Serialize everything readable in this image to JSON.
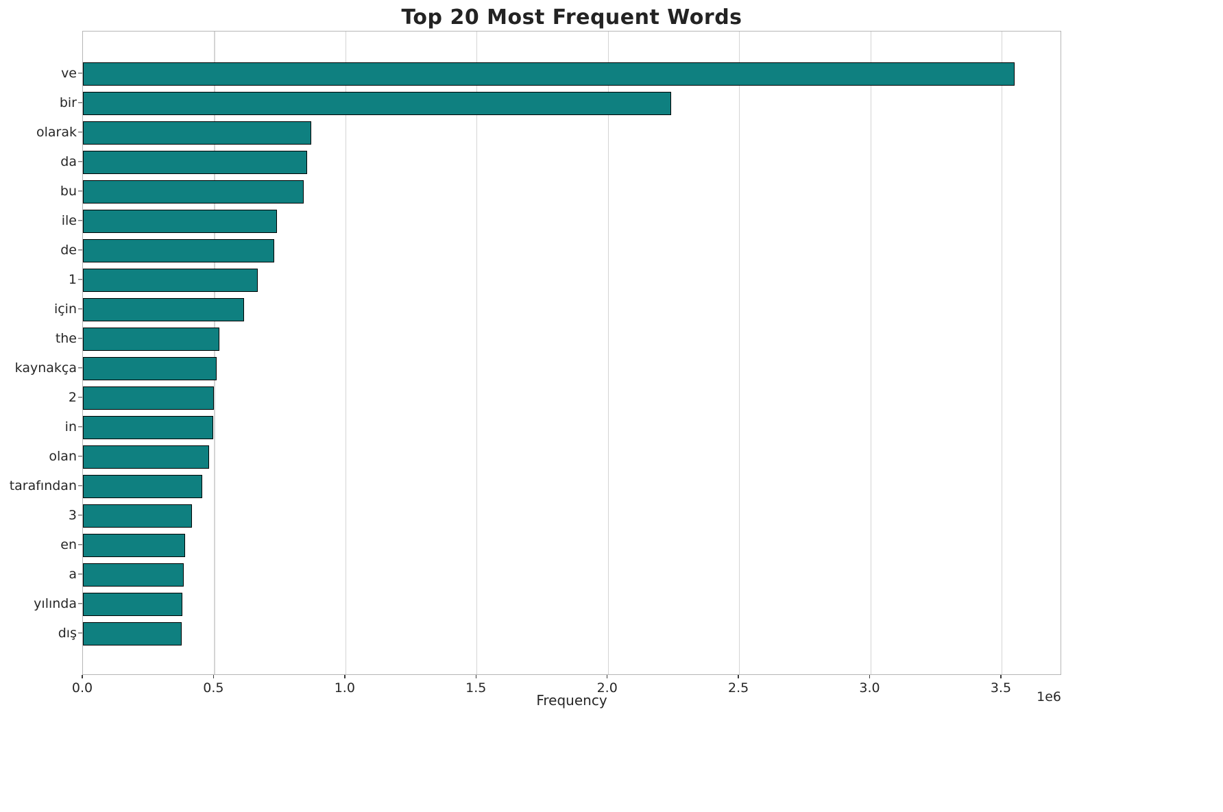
{
  "chart_data": {
    "type": "bar",
    "orientation": "horizontal",
    "title": "Top 20 Most Frequent Words",
    "xlabel": "Frequency",
    "ylabel": "",
    "offset_text": "1e6",
    "xlim": [
      0,
      3730000
    ],
    "grid": true,
    "legend": false,
    "colors": {
      "bar_fill": "#0f8080",
      "bar_edge": "#000000",
      "grid_line": "#d4d4d4",
      "frame": "#b5b5b5",
      "text": "#262626"
    },
    "categories": [
      "ve",
      "bir",
      "olarak",
      "da",
      "bu",
      "ile",
      "de",
      "1",
      "için",
      "the",
      "kaynakça",
      "2",
      "in",
      "olan",
      "tarafından",
      "3",
      "en",
      "a",
      "yılında",
      "dış"
    ],
    "values": [
      3550000,
      2240000,
      870000,
      855000,
      840000,
      740000,
      730000,
      665000,
      615000,
      520000,
      510000,
      500000,
      497000,
      480000,
      455000,
      415000,
      390000,
      385000,
      380000,
      375000
    ],
    "xticks": [
      {
        "value": 0,
        "label": "0.0"
      },
      {
        "value": 500000,
        "label": "0.5"
      },
      {
        "value": 1000000,
        "label": "1.0"
      },
      {
        "value": 1500000,
        "label": "1.5"
      },
      {
        "value": 2000000,
        "label": "2.0"
      },
      {
        "value": 2500000,
        "label": "2.5"
      },
      {
        "value": 3000000,
        "label": "3.0"
      },
      {
        "value": 3500000,
        "label": "3.5"
      }
    ]
  }
}
